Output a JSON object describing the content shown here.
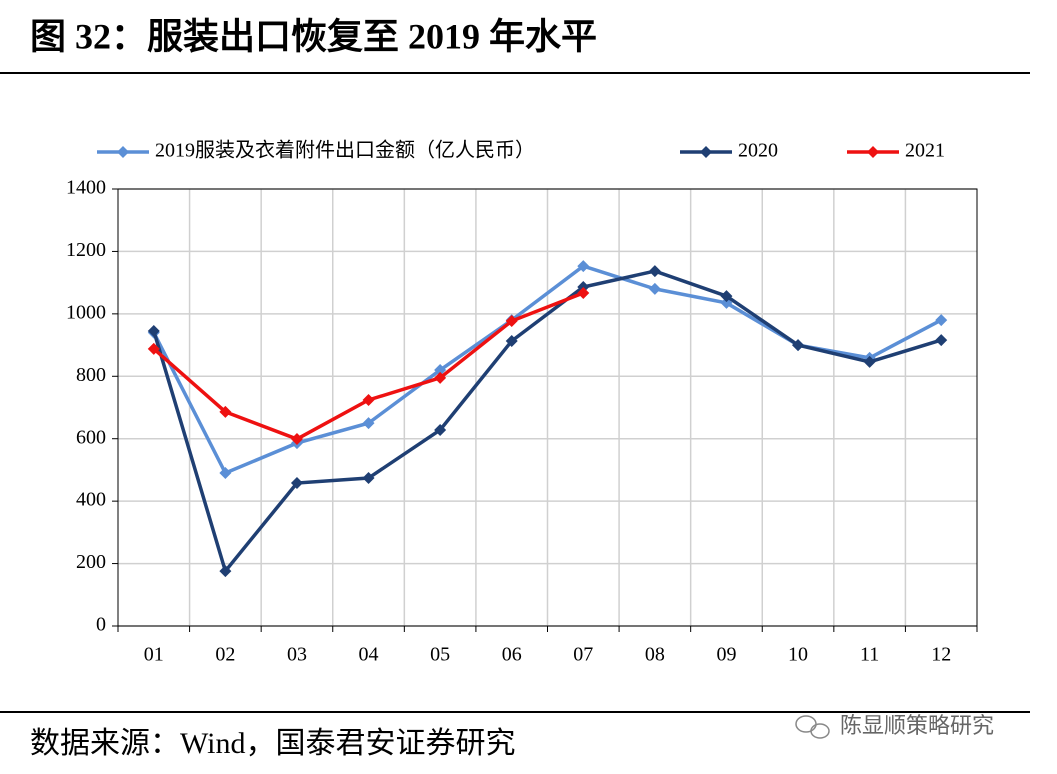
{
  "header": {
    "title": "图 32：服装出口恢复至 2019 年水平"
  },
  "chart_data": {
    "type": "line",
    "categories": [
      "01",
      "02",
      "03",
      "04",
      "05",
      "06",
      "07",
      "08",
      "09",
      "10",
      "11",
      "12"
    ],
    "series": [
      {
        "name": "2019服装及衣着附件出口金额（亿人民币）",
        "color": "#5b8fd6",
        "values": [
          940,
          490,
          586,
          650,
          820,
          980,
          1153,
          1080,
          1035,
          900,
          859,
          980
        ]
      },
      {
        "name": "2020",
        "color": "#1f3f73",
        "values": [
          945,
          176,
          458,
          474,
          628,
          913,
          1086,
          1137,
          1057,
          900,
          846,
          916
        ]
      },
      {
        "name": "2021",
        "color": "#ee1111",
        "values": [
          888,
          686,
          599,
          724,
          795,
          977,
          1067,
          null,
          null,
          null,
          null,
          null
        ]
      }
    ],
    "ylim": [
      0,
      1400
    ],
    "yticks": [
      0,
      200,
      400,
      600,
      800,
      1000,
      1200,
      1400
    ],
    "grid": true
  },
  "footer": {
    "source": "数据来源：Wind，国泰君安证券研究",
    "watermark": "陈显顺策略研究"
  }
}
